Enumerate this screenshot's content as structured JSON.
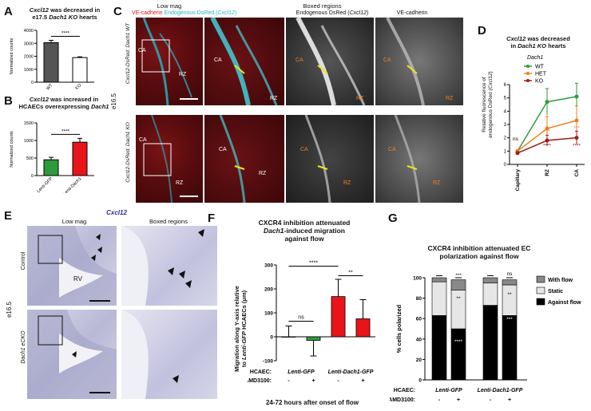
{
  "panels": {
    "A": {
      "letter": "A",
      "title_parts": [
        "Cxcl12",
        " was decreased in",
        "e17.5 ",
        "Dach1 KO",
        " hearts"
      ],
      "ylabel": "Normalized counts",
      "sig": "****",
      "chart_data": {
        "type": "bar",
        "categories": [
          "WT",
          "KO"
        ],
        "values": [
          3050,
          1900
        ],
        "errors": [
          180,
          60
        ],
        "ylim": [
          0,
          4000
        ],
        "yticks": [
          0,
          1000,
          2000,
          3000,
          4000
        ],
        "colors": [
          "#555555",
          "#ffffff"
        ]
      }
    },
    "B": {
      "letter": "B",
      "title_parts": [
        "Cxcl12",
        " was increased in",
        "HCAECs overexpressing ",
        "Dach1"
      ],
      "ylabel": "Normalized counts",
      "sig": "****",
      "chart_data": {
        "type": "bar",
        "categories": [
          "Lenti-GFP",
          "Lenti-Dach1"
        ],
        "values": [
          450,
          950
        ],
        "errors": [
          70,
          110
        ],
        "ylim": [
          0,
          1500
        ],
        "yticks": [
          0,
          500,
          1000,
          1500
        ],
        "colors": [
          "#2e9a3c",
          "#e8141a"
        ]
      }
    },
    "C": {
      "letter": "C",
      "header_low": "Low mag",
      "header_boxed": "Boxed regions",
      "legend_parts": [
        "VE-cadherin",
        " Endogenous DsRed (",
        "Cxcl12",
        ")"
      ],
      "legend_colors": [
        "#e8141a",
        "#21b9c8",
        "#21b9c8",
        "#21b9c8"
      ],
      "col3_parts": [
        "Endogenous DsRed (",
        "Cxcl12",
        ")"
      ],
      "col4": "VE-cadherin",
      "stage": "e16.5",
      "row1_label": "Cxcl12-DsRed; Dach1 WT",
      "row2_label": "Cxcl12-DsRed; Dach1 KO",
      "ca": "CA",
      "rz": "RZ"
    },
    "D": {
      "letter": "D",
      "title_parts": [
        "Cxcl12",
        " was decreased",
        "in ",
        "Dach1 KO",
        " hearts"
      ],
      "ylabel_parts": [
        "Relative fluorescence of",
        "endogenous DsRed (",
        "Cxcl12",
        ")"
      ],
      "legend_title": "Dach1",
      "ns": "ns",
      "chart_data": {
        "type": "line",
        "x": [
          "Capillary",
          "RZ",
          "CA"
        ],
        "ylim": [
          0,
          6
        ],
        "yticks": [
          0,
          1,
          2,
          3,
          4,
          5,
          6
        ],
        "series": [
          {
            "name": "WT",
            "color": "#2e9a3c",
            "values": [
              1.0,
              4.7,
              5.1
            ],
            "errors": [
              0.1,
              1.0,
              1.0
            ]
          },
          {
            "name": "HET",
            "color": "#f07e22",
            "values": [
              1.0,
              2.7,
              3.3
            ],
            "errors": [
              0.1,
              0.9,
              1.1
            ]
          },
          {
            "name": "KO",
            "color": "#a01c1c",
            "values": [
              0.85,
              1.8,
              2.0
            ],
            "errors": [
              0.1,
              0.4,
              0.5
            ]
          }
        ],
        "annotations": [
          {
            "x": "RZ",
            "text": "***",
            "color": "#f07e22"
          },
          {
            "x": "RZ",
            "text": "****",
            "color": "#a01c1c"
          },
          {
            "x": "CA",
            "text": "***",
            "color": "#f07e22"
          },
          {
            "x": "CA",
            "text": "****",
            "color": "#a01c1c"
          }
        ]
      }
    },
    "E": {
      "letter": "E",
      "gene": "Cxcl12",
      "header_low": "Low mag",
      "header_boxed": "Boxed regions",
      "stage": "e16.5",
      "row1_label": "Control",
      "row2_label": "Dach1 eCKO",
      "rv": "RV"
    },
    "F": {
      "letter": "F",
      "title_parts": [
        "CXCR4 inhibition attenuated",
        "Dach1",
        "-induced migration",
        "against flow"
      ],
      "ylabel_parts": [
        "Migration along Y-axis relative",
        "to ",
        "Lenti-GFP",
        " HCAECs (μm)"
      ],
      "row1_label": "HCAEC:",
      "row1_groups": [
        "Lenti-GFP",
        "Lenti-Dach1-GFP"
      ],
      "row2_label": "AMD3100:",
      "row2_values": [
        "-",
        "+",
        "-",
        "+"
      ],
      "footer": "24-72 hours after onset of flow",
      "sig": [
        "ns",
        "****",
        "**"
      ],
      "chart_data": {
        "type": "bar",
        "categories": [
          "GFP -",
          "GFP +",
          "Dach1 -",
          "Dach1 +"
        ],
        "values": [
          0,
          -15,
          168,
          75
        ],
        "errors": [
          45,
          65,
          72,
          80
        ],
        "ylim": [
          -100,
          300
        ],
        "yticks": [
          -100,
          0,
          100,
          200,
          300
        ],
        "colors": [
          "#ffffff",
          "#2e9a3c",
          "#e8141a",
          "#e8141a"
        ]
      }
    },
    "G": {
      "letter": "G",
      "title_parts": [
        "CXCR4 inhibition attenuated EC",
        "polarization against flow"
      ],
      "ylabel": "% cells polarized",
      "legend": [
        "With flow",
        "Static",
        "Against flow"
      ],
      "row1_label": "HCAEC:",
      "row1_groups": [
        "Lenti-GFP",
        "Lenti-Dach1-GFP"
      ],
      "row2_label": "AMD3100:",
      "row2_values": [
        "-",
        "+",
        "-",
        "+"
      ],
      "sig_top": [
        "***",
        "ns"
      ],
      "sig_mid": [
        "**",
        "**"
      ],
      "sig_low": [
        "****",
        "***"
      ],
      "chart_data": {
        "type": "bar",
        "stacked": true,
        "categories": [
          "GFP -",
          "GFP +",
          "Dach1 -",
          "Dach1 +"
        ],
        "ylim": [
          0,
          100
        ],
        "yticks": [
          0,
          20,
          40,
          60,
          80,
          100
        ],
        "series": [
          {
            "name": "Against flow",
            "color": "#000000",
            "values": [
              63,
              50,
              73,
              63
            ]
          },
          {
            "name": "Static",
            "color": "#e6e6e6",
            "values": [
              33,
              38,
              22,
              30
            ]
          },
          {
            "name": "With flow",
            "color": "#888888",
            "values": [
              4,
              10,
              5,
              5
            ]
          }
        ]
      }
    }
  }
}
